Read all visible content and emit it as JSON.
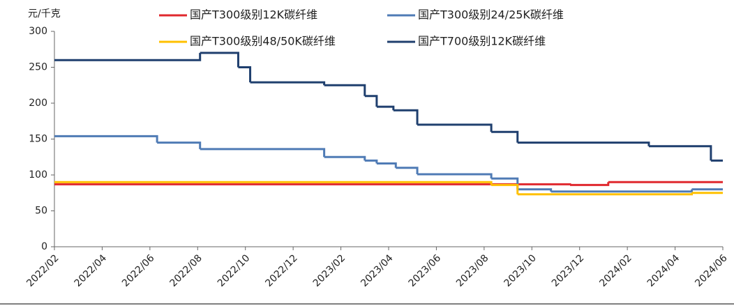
{
  "chart_data": {
    "type": "step",
    "y_label": "元/千克",
    "xlim": [
      0,
      28
    ],
    "xticks": [
      {
        "value": 0,
        "label": "2022/02"
      },
      {
        "value": 2,
        "label": "2022/04"
      },
      {
        "value": 4,
        "label": "2022/06"
      },
      {
        "value": 6,
        "label": "2022/08"
      },
      {
        "value": 8,
        "label": "2022/10"
      },
      {
        "value": 10,
        "label": "2022/12"
      },
      {
        "value": 12,
        "label": "2023/02"
      },
      {
        "value": 14,
        "label": "2023/04"
      },
      {
        "value": 16,
        "label": "2023/06"
      },
      {
        "value": 18,
        "label": "2023/08"
      },
      {
        "value": 20,
        "label": "2023/10"
      },
      {
        "value": 22,
        "label": "2023/12"
      },
      {
        "value": 24,
        "label": "2024/02"
      },
      {
        "value": 26,
        "label": "2024/04"
      },
      {
        "value": 28,
        "label": "2024/06"
      }
    ],
    "ylim": [
      0,
      300
    ],
    "yticks": [
      0,
      50,
      100,
      150,
      200,
      250,
      300
    ],
    "grid": false,
    "series": [
      {
        "name": "国产T300级别12K碳纤维",
        "color": "#e0282e",
        "x": [
          0,
          21.6,
          23.2,
          28
        ],
        "values": [
          87,
          86,
          90,
          90
        ]
      },
      {
        "name": "国产T300级别24/25K碳纤维",
        "color": "#4f7bb5",
        "x": [
          0,
          4.3,
          6.1,
          11.3,
          13,
          13.5,
          14.3,
          15.2,
          18.3,
          19.4,
          20.8,
          26.7,
          28
        ],
        "values": [
          154,
          145,
          136,
          125,
          120,
          116,
          110,
          101,
          95,
          80,
          77,
          80,
          80
        ]
      },
      {
        "name": "国产T300级别48/50K碳纤维",
        "color": "#ffc000",
        "x": [
          0,
          18.3,
          19.4,
          26.7,
          28
        ],
        "values": [
          90,
          86,
          73,
          75,
          75
        ]
      },
      {
        "name": "国产T700级别12K碳纤维",
        "color": "#1f3f6e",
        "x": [
          0,
          6.1,
          7.7,
          8.2,
          11.3,
          13,
          13.5,
          14.2,
          15.2,
          18.3,
          19.4,
          24.9,
          27.5,
          28
        ],
        "values": [
          260,
          270,
          250,
          229,
          225,
          210,
          195,
          190,
          170,
          160,
          145,
          140,
          120,
          120
        ]
      }
    ]
  }
}
